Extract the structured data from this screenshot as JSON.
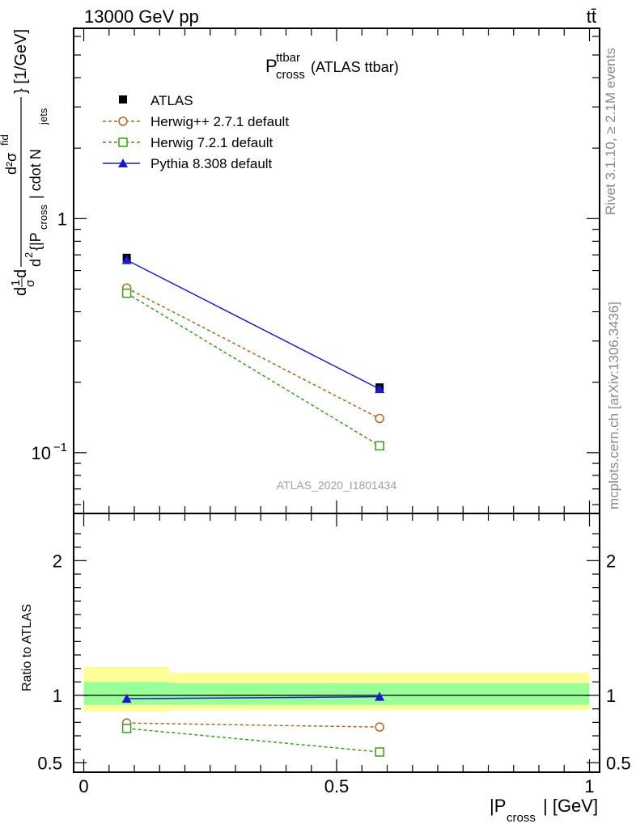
{
  "header": {
    "energy_label": "13000 GeV pp",
    "process_label": "tt̄"
  },
  "side_labels": {
    "rivet": "Rivet 3.1.10, ≥ 2.1M events",
    "mcplots": "mcplots.cern.ch [arXiv:1306.3436]"
  },
  "chart_data": [
    {
      "type": "line",
      "title_main": "P",
      "title_sup": "ttbar",
      "title_sub": "cross",
      "title_tail": "(ATLAS ttbar)",
      "ylabel": "d 1/σ dσ^fid / d² {|P_cross| cdot N_jets} [1/GeV]",
      "ylabel_parts": {
        "d1": "d",
        "frac_num": "1",
        "frac_den": "σ",
        "d2": "d",
        "num": "d²σ",
        "num_sup": "fid",
        "den_pre": "d",
        "den_sup": "2",
        "den_mid": "{|P",
        "den_sub": "cross",
        "den_mid2": "| cdot N",
        "den_sub2": "jets",
        "tail": "} [1/GeV]"
      },
      "y_scale": "log",
      "xlim": [
        -0.02,
        1.02
      ],
      "ylim": [
        0.055,
        6.5
      ],
      "y_ticks": [
        {
          "value": 1,
          "label": "1"
        },
        {
          "value": 0.1,
          "label_base": "10",
          "label_exp": "−1"
        }
      ],
      "watermark": "ATLAS_2020_I1801434",
      "legend_position": "top-left",
      "series": [
        {
          "name": "ATLAS",
          "style": "data",
          "x": [
            0.085,
            0.585
          ],
          "y": [
            0.68,
            0.19
          ],
          "yerr": [
            0.015,
            0.006
          ]
        },
        {
          "name": "Herwig++ 2.7.1 default",
          "style": "herwigpp",
          "x": [
            0.085,
            0.585
          ],
          "y": [
            0.505,
            0.14
          ],
          "yerr": [
            0.01,
            0.004
          ]
        },
        {
          "name": "Herwig 7.2.1 default",
          "style": "herwig7",
          "x": [
            0.085,
            0.585
          ],
          "y": [
            0.48,
            0.107
          ],
          "yerr": [
            0.01,
            0.004
          ]
        },
        {
          "name": "Pythia 8.308 default",
          "style": "pythia",
          "x": [
            0.085,
            0.585
          ],
          "y": [
            0.665,
            0.187
          ],
          "yerr": [
            0.01,
            0.004
          ]
        }
      ]
    },
    {
      "type": "line",
      "ylabel": "Ratio to ATLAS",
      "xlabel_main": "|P",
      "xlabel_sub": "cross",
      "xlabel_tail": "| [GeV]",
      "xlim": [
        -0.02,
        1.02
      ],
      "ylim": [
        0.43,
        2.35
      ],
      "x_ticks": [
        {
          "value": 0,
          "label": "0"
        },
        {
          "value": 0.5,
          "label": "0.5"
        },
        {
          "value": 1,
          "label": "1"
        }
      ],
      "y_ticks": [
        {
          "value": 0.5,
          "label": "0.5"
        },
        {
          "value": 1,
          "label": "1"
        },
        {
          "value": 2,
          "label": "2"
        }
      ],
      "reference": 1,
      "bands": [
        {
          "x0": 0,
          "x1": 0.17,
          "yellow": [
            0.88,
            1.21
          ],
          "green": [
            0.93,
            1.1
          ]
        },
        {
          "x0": 0.17,
          "x1": 1.0,
          "yellow": [
            0.89,
            1.17
          ],
          "green": [
            0.93,
            1.09
          ]
        }
      ],
      "series": [
        {
          "name": "Herwig++ 2.7.1 default",
          "style": "herwigpp",
          "x": [
            0.085,
            0.585
          ],
          "y": [
            0.795,
            0.765
          ],
          "yerr": [
            0.03,
            0.03
          ]
        },
        {
          "name": "Herwig 7.2.1 default",
          "style": "herwig7",
          "x": [
            0.085,
            0.585
          ],
          "y": [
            0.755,
            0.58
          ],
          "yerr": [
            0.03,
            0.03
          ]
        },
        {
          "name": "Pythia 8.308 default",
          "style": "pythia",
          "x": [
            0.085,
            0.585
          ],
          "y": [
            0.975,
            0.99
          ],
          "yerr": [
            0.03,
            0.03
          ]
        }
      ]
    }
  ],
  "colors": {
    "data": "#000000",
    "herwigpp": "#b5651d",
    "herwig7": "#3c9c1c",
    "pythia": "#1a1acc",
    "band_yellow": "#ffff99",
    "band_green": "#99ff99"
  }
}
